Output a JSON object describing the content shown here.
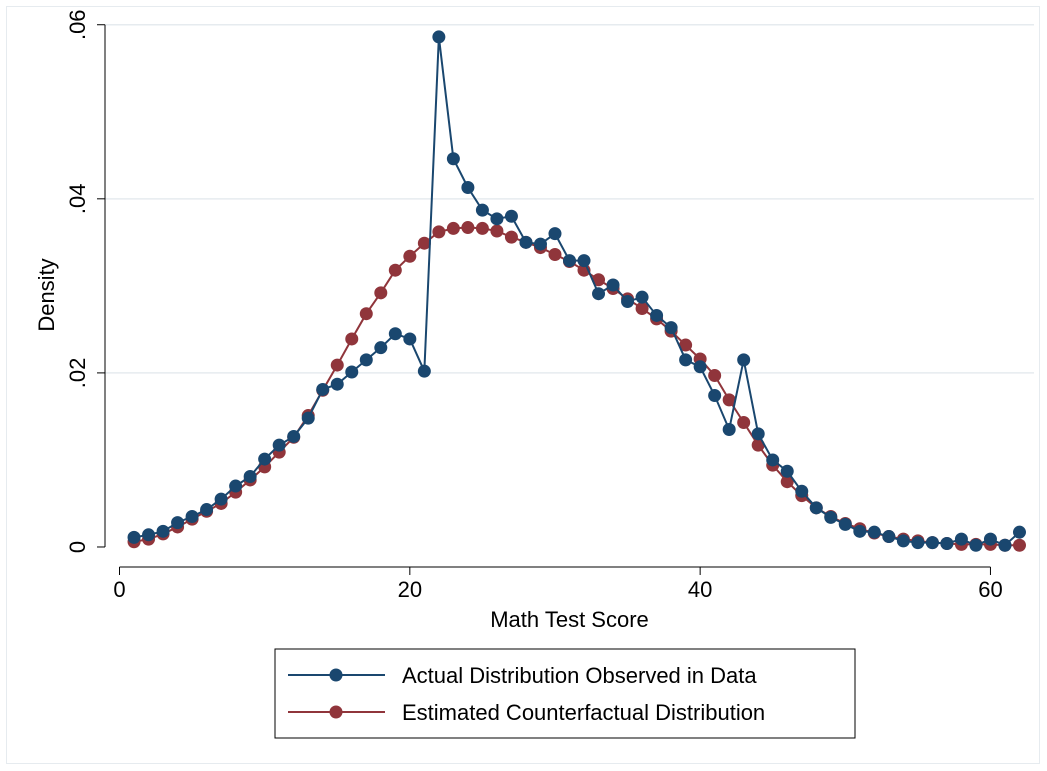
{
  "chart_data": {
    "type": "line",
    "xlabel": "Math Test Score",
    "ylabel": "Density",
    "xlim": [
      -1,
      63
    ],
    "ylim": [
      -0.0023,
      0.0602
    ],
    "x_ticks": [
      {
        "value": 0,
        "label": "0"
      },
      {
        "value": 20,
        "label": "20"
      },
      {
        "value": 40,
        "label": "40"
      },
      {
        "value": 60,
        "label": "60"
      }
    ],
    "y_ticks": [
      {
        "value": 0,
        "label": "0"
      },
      {
        "value": 0.02,
        "label": ".02"
      },
      {
        "value": 0.04,
        "label": ".04"
      },
      {
        "value": 0.06,
        "label": ".06"
      }
    ],
    "grid": "horizontal",
    "legend_position": "bottom",
    "x": [
      1,
      2,
      3,
      4,
      5,
      6,
      7,
      8,
      9,
      10,
      11,
      12,
      13,
      14,
      15,
      16,
      17,
      18,
      19,
      20,
      21,
      22,
      23,
      24,
      25,
      26,
      27,
      28,
      29,
      30,
      31,
      32,
      33,
      34,
      35,
      36,
      37,
      38,
      39,
      40,
      41,
      42,
      43,
      44,
      45,
      46,
      47,
      48,
      49,
      50,
      51,
      52,
      53,
      54,
      55,
      56,
      57,
      58,
      59,
      60,
      61,
      62
    ],
    "series": [
      {
        "name": "Actual Distribution Observed in Data",
        "color": "#1a476f",
        "values": [
          0.0011,
          0.0014,
          0.0018,
          0.0028,
          0.0035,
          0.0043,
          0.0055,
          0.007,
          0.0081,
          0.0101,
          0.0117,
          0.0127,
          0.0148,
          0.0181,
          0.0187,
          0.0201,
          0.0215,
          0.0229,
          0.0245,
          0.0239,
          0.0202,
          0.0586,
          0.0446,
          0.0413,
          0.0387,
          0.0377,
          0.038,
          0.035,
          0.0348,
          0.036,
          0.0329,
          0.0329,
          0.0291,
          0.0301,
          0.0282,
          0.0287,
          0.0266,
          0.0252,
          0.0215,
          0.0207,
          0.0174,
          0.0135,
          0.0215,
          0.013,
          0.01,
          0.0087,
          0.0064,
          0.0045,
          0.0034,
          0.0026,
          0.0018,
          0.0017,
          0.0012,
          0.0007,
          0.0005,
          0.0005,
          0.0004,
          0.0009,
          0.0002,
          0.0009,
          0.0002,
          0.0017
        ]
      },
      {
        "name": "Estimated Counterfactual Distribution",
        "color": "#90353b",
        "values": [
          0.0006,
          0.0009,
          0.0015,
          0.0023,
          0.0032,
          0.0041,
          0.005,
          0.0063,
          0.0077,
          0.0092,
          0.0109,
          0.0126,
          0.0151,
          0.018,
          0.0209,
          0.0239,
          0.0268,
          0.0292,
          0.0318,
          0.0334,
          0.0349,
          0.0362,
          0.0366,
          0.0367,
          0.0366,
          0.0363,
          0.0356,
          0.035,
          0.0344,
          0.0336,
          0.0328,
          0.0318,
          0.0307,
          0.0297,
          0.0285,
          0.0274,
          0.0262,
          0.0248,
          0.0232,
          0.0216,
          0.0197,
          0.0169,
          0.0143,
          0.0117,
          0.0094,
          0.0075,
          0.0059,
          0.0045,
          0.0035,
          0.0027,
          0.0021,
          0.0016,
          0.0012,
          0.0009,
          0.0007,
          0.0005,
          0.0004,
          0.0003,
          0.0003,
          0.0003,
          0.0002,
          0.0002
        ]
      }
    ]
  }
}
